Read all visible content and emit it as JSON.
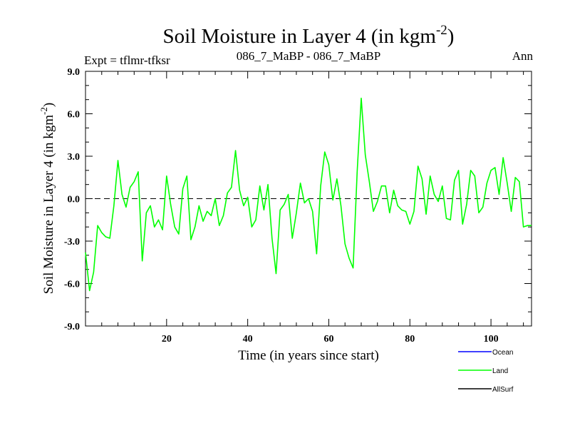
{
  "chart_data": {
    "type": "line",
    "title": "Soil Moisture in Layer 4 (in kgm",
    "title_sup": "-2",
    "title_close": ")",
    "subtitle_left": "Expt = tflmr-tfksr",
    "subtitle_center": "086_7_MaBP - 086_7_MaBP",
    "subtitle_right": "Ann",
    "xlabel": "Time (in years since start)",
    "ylabel": "Soil Moisture in Layer 4 (in kgm",
    "ylabel_sup": "-2",
    "ylabel_close": ")",
    "xlim": [
      0,
      110
    ],
    "ylim": [
      -9,
      9
    ],
    "xticks": [
      20,
      40,
      60,
      80,
      100
    ],
    "xtick_labels": [
      "20",
      "40",
      "60",
      "80",
      "100"
    ],
    "yticks": [
      -9,
      -6,
      -3,
      0,
      3,
      6,
      9
    ],
    "ytick_labels": [
      "-9.0",
      "-6.0",
      "-3.0",
      "0.0",
      "3.0",
      "6.0",
      "9.0"
    ],
    "zero_line": true,
    "legend_position": "bottom-right",
    "series": [
      {
        "name": "Ocean",
        "color": "#0000ff",
        "x": [],
        "values": []
      },
      {
        "name": "Land",
        "color": "#00ff00",
        "x": [
          0,
          1,
          2,
          3,
          4,
          5,
          6,
          7,
          8,
          9,
          10,
          11,
          12,
          13,
          14,
          15,
          16,
          17,
          18,
          19,
          20,
          21,
          22,
          23,
          24,
          25,
          26,
          27,
          28,
          29,
          30,
          31,
          32,
          33,
          34,
          35,
          36,
          37,
          38,
          39,
          40,
          41,
          42,
          43,
          44,
          45,
          46,
          47,
          48,
          49,
          50,
          51,
          52,
          53,
          54,
          55,
          56,
          57,
          58,
          59,
          60,
          61,
          62,
          63,
          64,
          65,
          66,
          67,
          68,
          69,
          70,
          71,
          72,
          73,
          74,
          75,
          76,
          77,
          78,
          79,
          80,
          81,
          82,
          83,
          84,
          85,
          86,
          87,
          88,
          89,
          90,
          91,
          92,
          93,
          94,
          95,
          96,
          97,
          98,
          99,
          100,
          101,
          102,
          103,
          104,
          105,
          106,
          107,
          108,
          109,
          110
        ],
        "values": [
          -3.8,
          -6.5,
          -5.2,
          -1.9,
          -2.4,
          -2.7,
          -2.8,
          -0.5,
          2.7,
          0.3,
          -0.6,
          0.8,
          1.2,
          1.9,
          -4.4,
          -1.0,
          -0.5,
          -2.0,
          -1.5,
          -2.2,
          1.6,
          -0.4,
          -2.0,
          -2.5,
          0.7,
          1.6,
          -2.9,
          -2.0,
          -0.5,
          -1.6,
          -0.9,
          -1.2,
          0.0,
          -1.9,
          -1.2,
          0.4,
          0.8,
          3.4,
          0.6,
          -0.5,
          0.1,
          -2.0,
          -1.5,
          0.9,
          -0.8,
          1.0,
          -2.8,
          -5.3,
          -0.8,
          -0.4,
          0.3,
          -2.8,
          -1.0,
          1.1,
          -0.3,
          0.0,
          -0.9,
          -3.9,
          0.9,
          3.3,
          2.4,
          -0.1,
          1.4,
          -0.5,
          -3.2,
          -4.2,
          -4.9,
          1.9,
          7.1,
          3.1,
          1.2,
          -0.9,
          -0.2,
          0.9,
          0.9,
          -1.0,
          0.6,
          -0.5,
          -0.8,
          -0.9,
          -1.8,
          -0.9,
          2.3,
          1.4,
          -1.1,
          1.6,
          0.3,
          -0.2,
          0.9,
          -1.4,
          -1.5,
          1.3,
          2.0,
          -1.8,
          -0.4,
          2.0,
          1.6,
          -1.0,
          -0.6,
          1.1,
          2.0,
          2.2,
          0.3,
          2.9,
          1.1,
          -0.9,
          1.5,
          1.2,
          -2.0,
          -1.9,
          -1.9
        ]
      },
      {
        "name": "AllSurf",
        "color": "#000000",
        "x": [],
        "values": []
      }
    ]
  }
}
